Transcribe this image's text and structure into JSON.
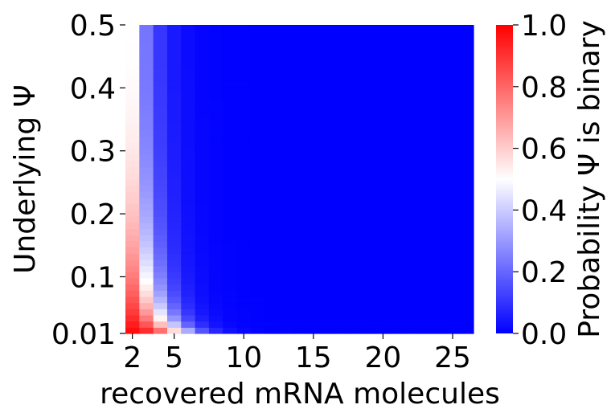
{
  "chart_data": {
    "type": "heatmap",
    "xlabel": "recovered mRNA molecules",
    "ylabel": "Underlying Ψ",
    "colorbar_label": "Probability Ψ is binary",
    "x_range": [
      2,
      26
    ],
    "y_range": [
      0.01,
      0.5
    ],
    "x_ticks": [
      2,
      5,
      10,
      15,
      20,
      25
    ],
    "x_tick_labels": [
      "2",
      "5",
      "10",
      "15",
      "20",
      "25"
    ],
    "y_ticks": [
      0.01,
      0.1,
      0.2,
      0.3,
      0.4,
      0.5
    ],
    "y_tick_labels": [
      "0.01",
      "0.1",
      "0.2",
      "0.3",
      "0.4",
      "0.5"
    ],
    "colorbar_ticks": [
      0.0,
      0.2,
      0.4,
      0.6,
      0.8,
      1.0
    ],
    "colorbar_tick_labels": [
      "0.0",
      "0.2",
      "0.4",
      "0.6",
      "0.8",
      "1.0"
    ],
    "colormap": "bwr",
    "color_low": "#0000ff",
    "color_mid": "#ffffff",
    "color_high": "#ff0000",
    "value_range": [
      0.0,
      1.0
    ],
    "y_rows": 50,
    "x_cols": 25,
    "model": "P(binary) = 1 / (1 + ((1 - (1 - psi)^n - psi^n) * 2^(n-1))^1.1); estimated from color"
  }
}
